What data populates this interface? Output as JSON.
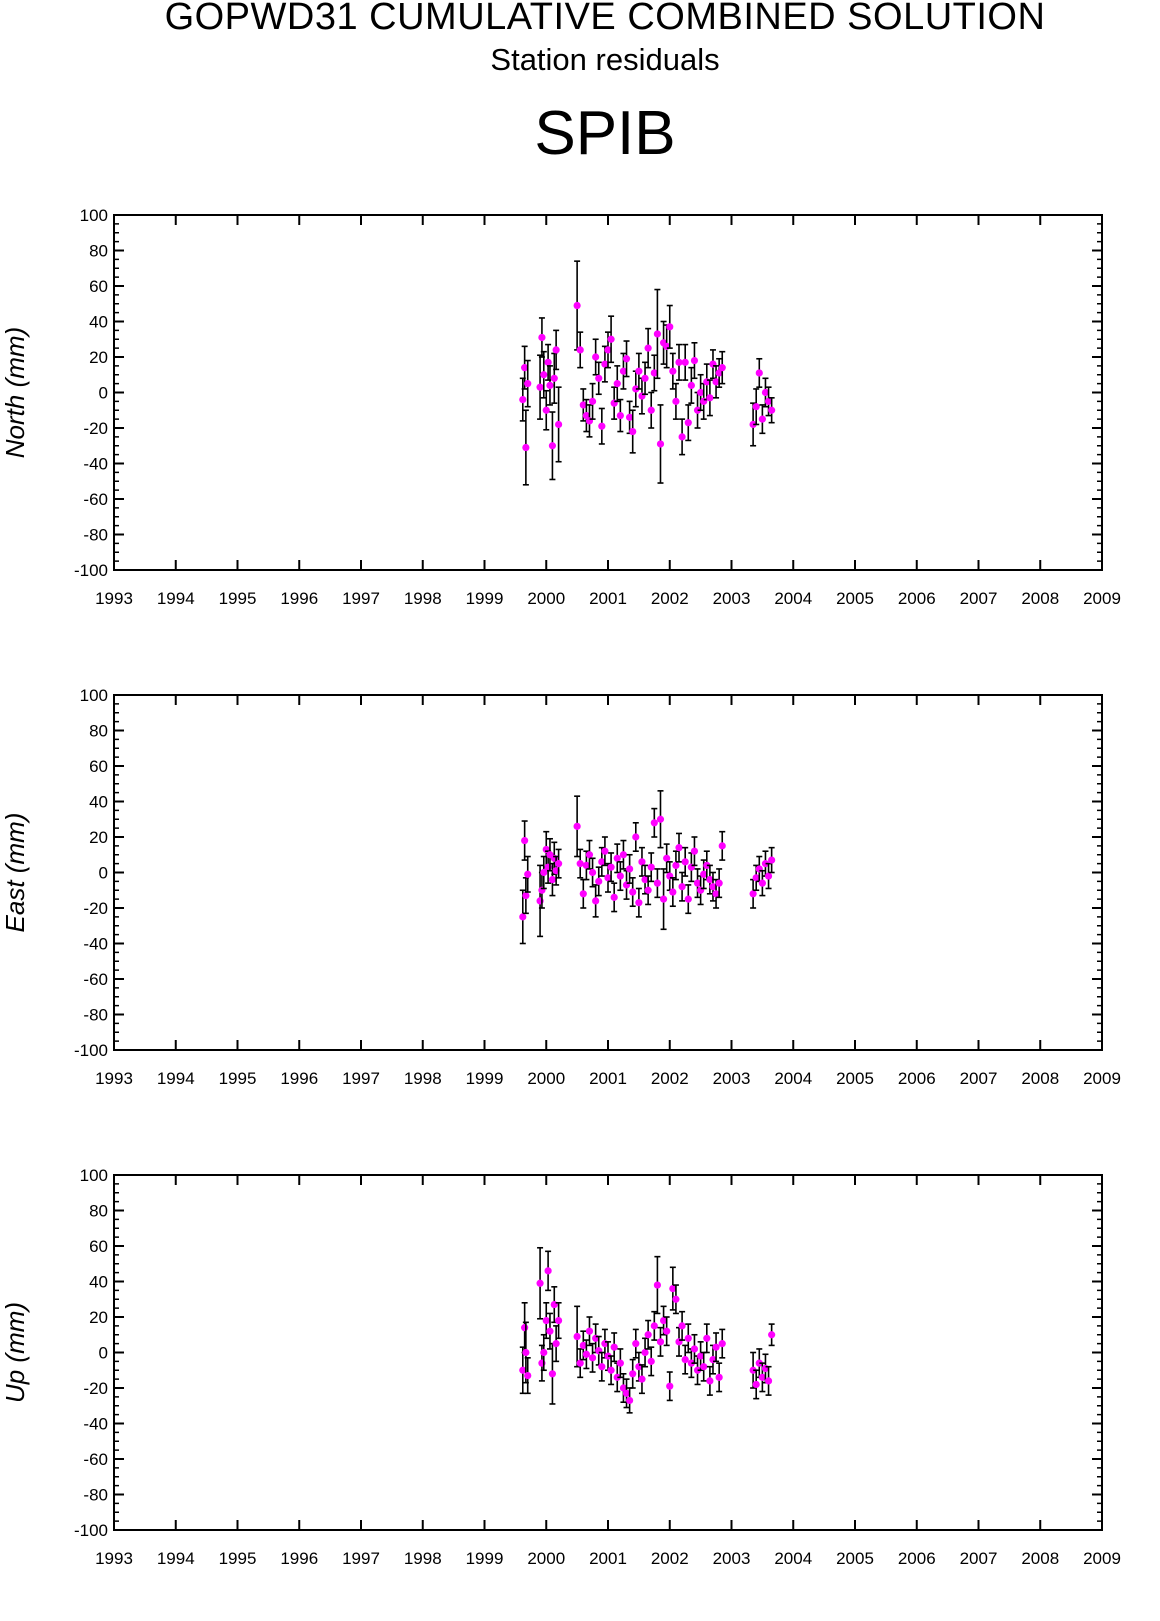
{
  "header": {
    "title": "GOPWD31 CUMULATIVE COMBINED SOLUTION",
    "subtitle": "Station residuals",
    "station": "SPIB"
  },
  "colors": {
    "marker": "#ff00ff",
    "errorbar": "#000000",
    "axis": "#000000"
  },
  "chart_data": [
    {
      "type": "scatter",
      "component": "North",
      "ylabel": "North (mm)",
      "xlim": [
        1993,
        2009
      ],
      "ylim": [
        -100,
        100
      ],
      "xticks": [
        "1993",
        "1994",
        "1995",
        "1996",
        "1997",
        "1998",
        "1999",
        "2000",
        "2001",
        "2002",
        "2003",
        "2004",
        "2005",
        "2006",
        "2007",
        "2008",
        "2009"
      ],
      "yticks": [
        "100",
        "80",
        "60",
        "40",
        "20",
        "0",
        "-20",
        "-40",
        "-60",
        "-80",
        "-100"
      ],
      "grid": false,
      "error_bars": true,
      "points": [
        [
          1999.62,
          -4,
          12
        ],
        [
          1999.65,
          14,
          12
        ],
        [
          1999.67,
          -31,
          21
        ],
        [
          1999.7,
          5,
          13
        ],
        [
          1999.9,
          3,
          18
        ],
        [
          1999.93,
          31,
          11
        ],
        [
          1999.96,
          10,
          13
        ],
        [
          2000.0,
          -10,
          11
        ],
        [
          2000.03,
          17,
          10
        ],
        [
          2000.06,
          4,
          11
        ],
        [
          2000.1,
          -30,
          19
        ],
        [
          2000.13,
          8,
          14
        ],
        [
          2000.16,
          24,
          11
        ],
        [
          2000.2,
          -18,
          21
        ],
        [
          2000.5,
          49,
          25
        ],
        [
          2000.55,
          24,
          10
        ],
        [
          2000.6,
          -7,
          9
        ],
        [
          2000.65,
          -13,
          9
        ],
        [
          2000.7,
          -16,
          9
        ],
        [
          2000.75,
          -5,
          10
        ],
        [
          2000.8,
          20,
          10
        ],
        [
          2000.85,
          8,
          9
        ],
        [
          2000.9,
          -19,
          10
        ],
        [
          2000.95,
          16,
          10
        ],
        [
          2001.0,
          24,
          10
        ],
        [
          2001.05,
          30,
          13
        ],
        [
          2001.1,
          -6,
          9
        ],
        [
          2001.15,
          5,
          10
        ],
        [
          2001.2,
          -13,
          9
        ],
        [
          2001.25,
          12,
          10
        ],
        [
          2001.3,
          19,
          10
        ],
        [
          2001.35,
          -14,
          9
        ],
        [
          2001.4,
          -22,
          12
        ],
        [
          2001.45,
          2,
          10
        ],
        [
          2001.5,
          12,
          10
        ],
        [
          2001.55,
          -2,
          10
        ],
        [
          2001.6,
          8,
          9
        ],
        [
          2001.65,
          25,
          11
        ],
        [
          2001.7,
          -10,
          10
        ],
        [
          2001.75,
          11,
          10
        ],
        [
          2001.8,
          33,
          25
        ],
        [
          2001.85,
          -29,
          22
        ],
        [
          2001.9,
          28,
          12
        ],
        [
          2001.95,
          26,
          12
        ],
        [
          2002.0,
          37,
          12
        ],
        [
          2002.05,
          12,
          10
        ],
        [
          2002.1,
          -5,
          10
        ],
        [
          2002.15,
          17,
          10
        ],
        [
          2002.2,
          -25,
          10
        ],
        [
          2002.25,
          17,
          10
        ],
        [
          2002.3,
          -17,
          10
        ],
        [
          2002.35,
          4,
          10
        ],
        [
          2002.4,
          18,
          10
        ],
        [
          2002.45,
          -10,
          10
        ],
        [
          2002.5,
          0,
          10
        ],
        [
          2002.55,
          -5,
          10
        ],
        [
          2002.6,
          6,
          10
        ],
        [
          2002.65,
          -3,
          10
        ],
        [
          2002.7,
          16,
          8
        ],
        [
          2002.75,
          6,
          9
        ],
        [
          2002.8,
          11,
          8
        ],
        [
          2002.85,
          14,
          9
        ],
        [
          2003.35,
          -18,
          12
        ],
        [
          2003.4,
          -8,
          10
        ],
        [
          2003.45,
          11,
          8
        ],
        [
          2003.5,
          -15,
          8
        ],
        [
          2003.55,
          0,
          8
        ],
        [
          2003.6,
          -5,
          8
        ],
        [
          2003.65,
          -10,
          7
        ]
      ]
    },
    {
      "type": "scatter",
      "component": "East",
      "ylabel": "East (mm)",
      "xlim": [
        1993,
        2009
      ],
      "ylim": [
        -100,
        100
      ],
      "xticks": [
        "1993",
        "1994",
        "1995",
        "1996",
        "1997",
        "1998",
        "1999",
        "2000",
        "2001",
        "2002",
        "2003",
        "2004",
        "2005",
        "2006",
        "2007",
        "2008",
        "2009"
      ],
      "yticks": [
        "100",
        "80",
        "60",
        "40",
        "20",
        "0",
        "-20",
        "-40",
        "-60",
        "-80",
        "-100"
      ],
      "grid": false,
      "error_bars": true,
      "points": [
        [
          1999.62,
          -25,
          15
        ],
        [
          1999.65,
          18,
          11
        ],
        [
          1999.67,
          -13,
          10
        ],
        [
          1999.7,
          -1,
          10
        ],
        [
          1999.9,
          -16,
          20
        ],
        [
          1999.93,
          -10,
          10
        ],
        [
          1999.96,
          0,
          9
        ],
        [
          2000.0,
          13,
          10
        ],
        [
          2000.03,
          3,
          9
        ],
        [
          2000.06,
          10,
          9
        ],
        [
          2000.1,
          -4,
          9
        ],
        [
          2000.13,
          8,
          9
        ],
        [
          2000.16,
          1,
          8
        ],
        [
          2000.2,
          5,
          8
        ],
        [
          2000.5,
          26,
          17
        ],
        [
          2000.55,
          5,
          8
        ],
        [
          2000.6,
          -12,
          8
        ],
        [
          2000.65,
          4,
          8
        ],
        [
          2000.7,
          10,
          8
        ],
        [
          2000.75,
          0,
          8
        ],
        [
          2000.8,
          -16,
          9
        ],
        [
          2000.85,
          -5,
          8
        ],
        [
          2000.9,
          6,
          8
        ],
        [
          2000.95,
          12,
          8
        ],
        [
          2001.0,
          -3,
          8
        ],
        [
          2001.05,
          3,
          8
        ],
        [
          2001.1,
          -14,
          8
        ],
        [
          2001.15,
          8,
          8
        ],
        [
          2001.2,
          -2,
          8
        ],
        [
          2001.25,
          10,
          8
        ],
        [
          2001.3,
          -7,
          8
        ],
        [
          2001.35,
          2,
          8
        ],
        [
          2001.4,
          -11,
          8
        ],
        [
          2001.45,
          20,
          8
        ],
        [
          2001.5,
          -17,
          8
        ],
        [
          2001.55,
          6,
          8
        ],
        [
          2001.6,
          -4,
          8
        ],
        [
          2001.65,
          -10,
          8
        ],
        [
          2001.7,
          3,
          8
        ],
        [
          2001.75,
          28,
          8
        ],
        [
          2001.8,
          -6,
          8
        ],
        [
          2001.85,
          30,
          16
        ],
        [
          2001.9,
          -15,
          17
        ],
        [
          2001.95,
          8,
          8
        ],
        [
          2002.0,
          -2,
          8
        ],
        [
          2002.05,
          -11,
          8
        ],
        [
          2002.1,
          4,
          8
        ],
        [
          2002.15,
          14,
          8
        ],
        [
          2002.2,
          -8,
          8
        ],
        [
          2002.25,
          6,
          8
        ],
        [
          2002.3,
          -15,
          8
        ],
        [
          2002.35,
          3,
          8
        ],
        [
          2002.4,
          12,
          8
        ],
        [
          2002.45,
          -6,
          8
        ],
        [
          2002.5,
          -10,
          8
        ],
        [
          2002.55,
          -1,
          8
        ],
        [
          2002.6,
          4,
          8
        ],
        [
          2002.65,
          -4,
          8
        ],
        [
          2002.7,
          -8,
          8
        ],
        [
          2002.75,
          -12,
          8
        ],
        [
          2002.8,
          -6,
          8
        ],
        [
          2002.85,
          15,
          8
        ],
        [
          2003.35,
          -12,
          8
        ],
        [
          2003.4,
          -3,
          7
        ],
        [
          2003.45,
          2,
          7
        ],
        [
          2003.5,
          -6,
          7
        ],
        [
          2003.55,
          5,
          7
        ],
        [
          2003.6,
          -2,
          7
        ],
        [
          2003.65,
          7,
          7
        ]
      ]
    },
    {
      "type": "scatter",
      "component": "Up",
      "ylabel": "Up (mm)",
      "xlim": [
        1993,
        2009
      ],
      "ylim": [
        -100,
        100
      ],
      "xticks": [
        "1993",
        "1994",
        "1995",
        "1996",
        "1997",
        "1998",
        "1999",
        "2000",
        "2001",
        "2002",
        "2003",
        "2004",
        "2005",
        "2006",
        "2007",
        "2008",
        "2009"
      ],
      "yticks": [
        "100",
        "80",
        "60",
        "40",
        "20",
        "0",
        "-20",
        "-40",
        "-60",
        "-80",
        "-100"
      ],
      "grid": false,
      "error_bars": true,
      "points": [
        [
          1999.62,
          -10,
          13
        ],
        [
          1999.65,
          14,
          14
        ],
        [
          1999.67,
          0,
          17
        ],
        [
          1999.7,
          -13,
          10
        ],
        [
          1999.9,
          39,
          20
        ],
        [
          1999.93,
          -6,
          10
        ],
        [
          1999.96,
          0,
          10
        ],
        [
          2000.0,
          18,
          10
        ],
        [
          2000.03,
          46,
          11
        ],
        [
          2000.06,
          12,
          10
        ],
        [
          2000.1,
          -12,
          17
        ],
        [
          2000.13,
          27,
          10
        ],
        [
          2000.16,
          5,
          10
        ],
        [
          2000.2,
          18,
          10
        ],
        [
          2000.5,
          9,
          17
        ],
        [
          2000.55,
          -6,
          8
        ],
        [
          2000.6,
          4,
          8
        ],
        [
          2000.65,
          -1,
          8
        ],
        [
          2000.7,
          12,
          8
        ],
        [
          2000.75,
          -3,
          8
        ],
        [
          2000.8,
          8,
          8
        ],
        [
          2000.85,
          1,
          8
        ],
        [
          2000.9,
          -8,
          8
        ],
        [
          2000.95,
          5,
          8
        ],
        [
          2001.0,
          -2,
          8
        ],
        [
          2001.05,
          -10,
          8
        ],
        [
          2001.1,
          3,
          8
        ],
        [
          2001.15,
          -14,
          8
        ],
        [
          2001.2,
          -6,
          8
        ],
        [
          2001.25,
          -20,
          8
        ],
        [
          2001.3,
          -23,
          8
        ],
        [
          2001.35,
          -27,
          7
        ],
        [
          2001.4,
          -12,
          8
        ],
        [
          2001.45,
          5,
          8
        ],
        [
          2001.5,
          -8,
          8
        ],
        [
          2001.55,
          -15,
          8
        ],
        [
          2001.6,
          0,
          8
        ],
        [
          2001.65,
          10,
          8
        ],
        [
          2001.7,
          -5,
          8
        ],
        [
          2001.75,
          15,
          8
        ],
        [
          2001.8,
          38,
          16
        ],
        [
          2001.85,
          6,
          8
        ],
        [
          2001.9,
          18,
          8
        ],
        [
          2001.95,
          12,
          8
        ],
        [
          2002.0,
          -19,
          8
        ],
        [
          2002.05,
          36,
          12
        ],
        [
          2002.1,
          30,
          8
        ],
        [
          2002.15,
          6,
          8
        ],
        [
          2002.2,
          15,
          8
        ],
        [
          2002.25,
          -4,
          8
        ],
        [
          2002.3,
          8,
          8
        ],
        [
          2002.35,
          -6,
          8
        ],
        [
          2002.4,
          2,
          8
        ],
        [
          2002.45,
          -10,
          8
        ],
        [
          2002.5,
          -2,
          8
        ],
        [
          2002.55,
          -8,
          8
        ],
        [
          2002.6,
          8,
          8
        ],
        [
          2002.65,
          -16,
          8
        ],
        [
          2002.7,
          -4,
          8
        ],
        [
          2002.75,
          3,
          8
        ],
        [
          2002.8,
          -14,
          8
        ],
        [
          2002.85,
          5,
          8
        ],
        [
          2003.35,
          -10,
          10
        ],
        [
          2003.4,
          -18,
          8
        ],
        [
          2003.45,
          -6,
          8
        ],
        [
          2003.5,
          -14,
          8
        ],
        [
          2003.55,
          -9,
          8
        ],
        [
          2003.6,
          -16,
          8
        ],
        [
          2003.65,
          10,
          6
        ]
      ]
    }
  ]
}
